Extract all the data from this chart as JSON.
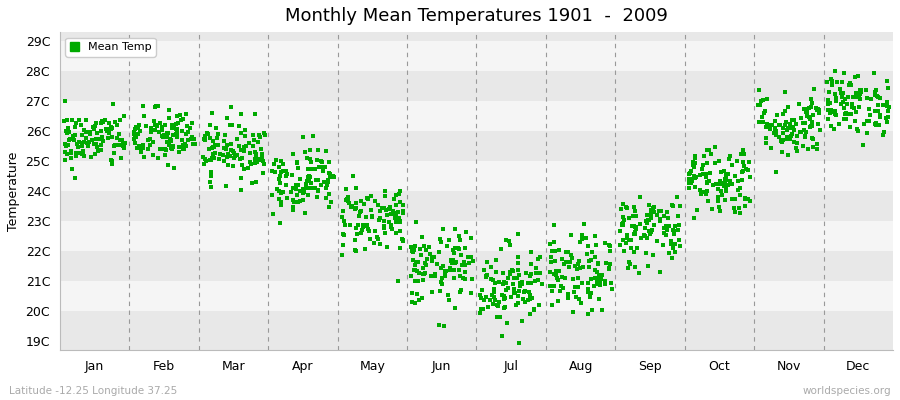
{
  "title": "Monthly Mean Temperatures 1901  -  2009",
  "ylabel": "Temperature",
  "xlabel_labels": [
    "Jan",
    "Feb",
    "Mar",
    "Apr",
    "May",
    "Jun",
    "Jul",
    "Aug",
    "Sep",
    "Oct",
    "Nov",
    "Dec"
  ],
  "legend_label": "Mean Temp",
  "dot_color": "#00aa00",
  "background_color": "#ffffff",
  "plot_bg_color_odd": "#e8e8e8",
  "plot_bg_color_even": "#f5f5f5",
  "ytick_labels": [
    "19C",
    "20C",
    "21C",
    "22C",
    "23C",
    "24C",
    "25C",
    "26C",
    "27C",
    "28C",
    "29C"
  ],
  "ytick_values": [
    19,
    20,
    21,
    22,
    23,
    24,
    25,
    26,
    27,
    28,
    29
  ],
  "ylim": [
    18.7,
    29.3
  ],
  "footer_left": "Latitude -12.25 Longitude 37.25",
  "footer_right": "worldspecies.org",
  "monthly_mean": [
    25.7,
    25.8,
    25.4,
    24.4,
    23.1,
    21.4,
    20.9,
    21.2,
    22.7,
    24.4,
    26.2,
    26.9
  ],
  "monthly_std": [
    0.48,
    0.48,
    0.5,
    0.55,
    0.6,
    0.65,
    0.68,
    0.65,
    0.62,
    0.6,
    0.55,
    0.52
  ],
  "n_years": 109,
  "seed": 42
}
